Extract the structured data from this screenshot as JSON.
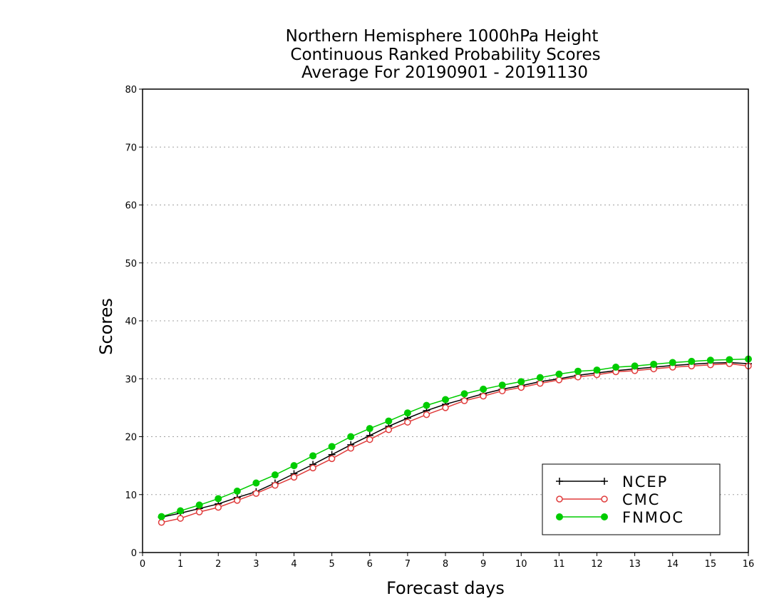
{
  "chart_data": {
    "type": "line",
    "title": [
      "Northern Hemisphere 1000hPa Height",
      "Continuous Ranked Probability Scores",
      "Average For 20190901 - 20191130"
    ],
    "xlabel": "Forecast days",
    "ylabel": "Scores",
    "xlim": [
      0,
      16
    ],
    "ylim": [
      0,
      80
    ],
    "xticks": [
      0,
      1,
      2,
      3,
      4,
      5,
      6,
      7,
      8,
      9,
      10,
      11,
      12,
      13,
      14,
      15,
      16
    ],
    "yticks": [
      0,
      10,
      20,
      30,
      40,
      50,
      60,
      70,
      80
    ],
    "grid": "horizontal dotted",
    "legend_position": "bottom-right",
    "x": [
      0.5,
      1,
      1.5,
      2,
      2.5,
      3,
      3.5,
      4,
      4.5,
      5,
      5.5,
      6,
      6.5,
      7,
      7.5,
      8,
      8.5,
      9,
      9.5,
      10,
      10.5,
      11,
      11.5,
      12,
      12.5,
      13,
      13.5,
      14,
      14.5,
      15,
      15.5,
      16
    ],
    "series": [
      {
        "name": "NCEP",
        "color": "#000000",
        "marker": "plus",
        "values": [
          6.1,
          6.8,
          7.6,
          8.4,
          9.5,
          10.5,
          12.0,
          13.6,
          15.2,
          16.9,
          18.6,
          20.2,
          21.8,
          23.2,
          24.5,
          25.6,
          26.5,
          27.4,
          28.2,
          28.8,
          29.5,
          30.0,
          30.6,
          31.0,
          31.4,
          31.7,
          32.0,
          32.3,
          32.5,
          32.7,
          32.8,
          32.6
        ]
      },
      {
        "name": "CMC",
        "color": "#e03c3c",
        "marker": "open-circle",
        "values": [
          5.2,
          5.9,
          7.0,
          7.8,
          9.0,
          10.2,
          11.6,
          13.0,
          14.6,
          16.2,
          18.0,
          19.5,
          21.2,
          22.5,
          23.8,
          25.0,
          26.2,
          27.0,
          27.9,
          28.5,
          29.2,
          29.8,
          30.3,
          30.7,
          31.2,
          31.4,
          31.7,
          32.0,
          32.2,
          32.4,
          32.6,
          32.2
        ]
      },
      {
        "name": "FNMOC",
        "color": "#00cc00",
        "marker": "filled-circle",
        "values": [
          6.2,
          7.2,
          8.2,
          9.3,
          10.6,
          12.0,
          13.4,
          15.0,
          16.7,
          18.3,
          20.0,
          21.4,
          22.7,
          24.1,
          25.4,
          26.4,
          27.4,
          28.2,
          28.9,
          29.5,
          30.2,
          30.8,
          31.3,
          31.5,
          32.0,
          32.2,
          32.5,
          32.8,
          33.0,
          33.2,
          33.3,
          33.4
        ]
      }
    ]
  }
}
